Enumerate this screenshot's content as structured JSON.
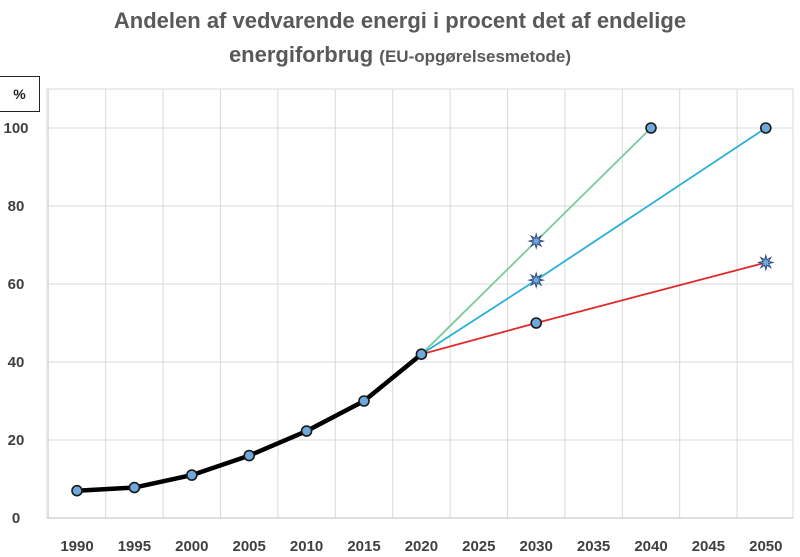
{
  "chart_data": {
    "type": "line",
    "title": "Andelen af vedvarende energi i procent det af endelige",
    "title_line2": "energiforbrug",
    "subtitle": "(EU-opgørelsesmetode)",
    "ylabel": "%",
    "xlim": [
      1987,
      2052
    ],
    "ylim": [
      0,
      110
    ],
    "xticks": [
      1990,
      1995,
      2000,
      2005,
      2010,
      2015,
      2020,
      2025,
      2030,
      2035,
      2040,
      2045,
      2050
    ],
    "yticks": [
      0,
      20,
      40,
      60,
      80,
      100
    ],
    "grid": true,
    "series": [
      {
        "color": "#000000",
        "marker": "circle",
        "x": [
          1990,
          1995,
          2000,
          2005,
          2010,
          2015,
          2020
        ],
        "y": [
          7,
          7.8,
          11,
          16,
          22.3,
          30,
          42
        ]
      },
      {
        "color": "#7ac9a0",
        "marker": "star-end-circle",
        "x": [
          2020,
          2030,
          2040
        ],
        "y": [
          42,
          71,
          100
        ]
      },
      {
        "color": "#2ab0d8",
        "marker": "star-end-circle",
        "x": [
          2020,
          2030,
          2050
        ],
        "y": [
          42,
          61,
          100
        ]
      },
      {
        "color": "#e02b2b",
        "marker": "circle-end-star",
        "x": [
          2020,
          2030,
          2050
        ],
        "y": [
          42,
          50,
          65.5
        ]
      }
    ],
    "marker_color": "#6fa8dc"
  }
}
